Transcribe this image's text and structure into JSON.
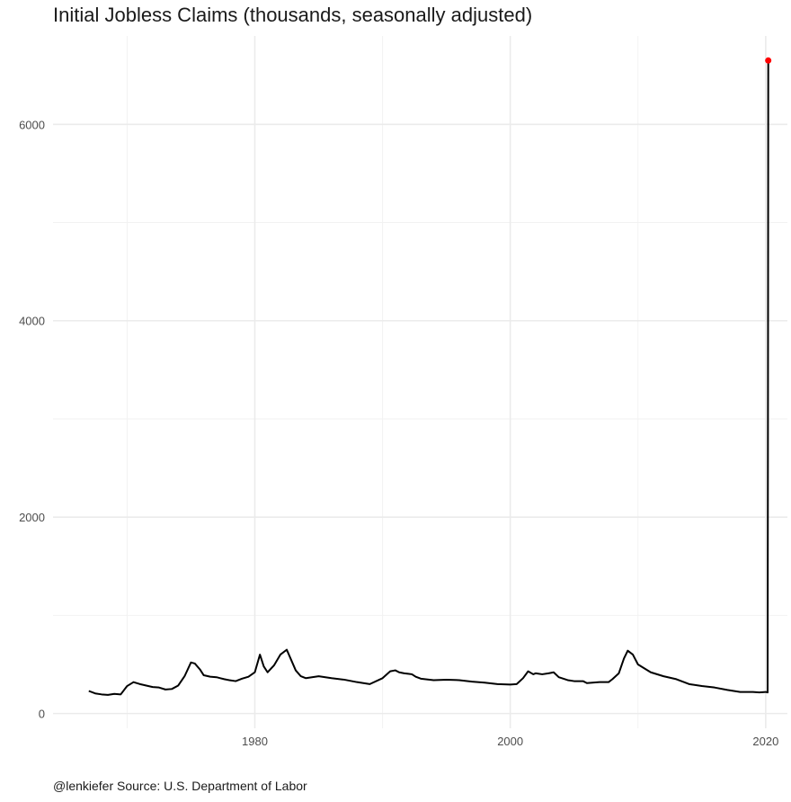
{
  "title": "Initial Jobless Claims (thousands, seasonally adjusted)",
  "caption": "@lenkiefer Source: U.S. Department of Labor",
  "chart_data": {
    "type": "line",
    "title": "Initial Jobless Claims (thousands, seasonally adjusted)",
    "xlabel": "",
    "ylabel": "",
    "xlim": [
      1964.2,
      2021.7
    ],
    "ylim": [
      -150,
      6900
    ],
    "x_major_ticks": [
      1980,
      2000,
      2020
    ],
    "x_minor_ticks": [
      1970,
      1990,
      2010
    ],
    "y_major_ticks": [
      0,
      2000,
      4000,
      6000
    ],
    "y_minor_ticks": [
      1000,
      3000,
      5000
    ],
    "tick_labels_x": [
      "1980",
      "2000",
      "2020"
    ],
    "tick_labels_y": [
      "0",
      "2000",
      "4000",
      "6000"
    ],
    "grid": true,
    "line_color": "#000000",
    "highlight_color": "#ff0000",
    "series": [
      {
        "x": [
          1967.0,
          1967.5,
          1968.0,
          1968.5,
          1969.0,
          1969.5,
          1970.0,
          1970.5,
          1971.0,
          1971.5,
          1972.0,
          1972.5,
          1973.0,
          1973.5,
          1974.0,
          1974.5,
          1975.0,
          1975.3,
          1975.7,
          1976.0,
          1976.5,
          1977.0,
          1977.3,
          1977.6,
          1978.0,
          1978.5,
          1979.0,
          1979.5,
          1980.0,
          1980.4,
          1980.7,
          1981.0,
          1981.5,
          1982.0,
          1982.5,
          1982.8,
          1983.2,
          1983.6,
          1984.0,
          1985.0,
          1986.0,
          1987.0,
          1988.0,
          1989.0,
          1990.0,
          1990.6,
          1991.0,
          1991.3,
          1991.7,
          1992.0,
          1992.3,
          1992.6,
          1993.0,
          1994.0,
          1995.0,
          1996.0,
          1997.0,
          1998.0,
          1999.0,
          2000.0,
          2000.5,
          2001.0,
          2001.4,
          2001.8,
          2002.0,
          2002.5,
          2003.0,
          2003.4,
          2003.8,
          2004.5,
          2005.0,
          2005.7,
          2006.0,
          2007.0,
          2007.7,
          2008.0,
          2008.5,
          2008.9,
          2009.2,
          2009.6,
          2010.0,
          2010.5,
          2011.0,
          2012.0,
          2013.0,
          2014.0,
          2015.0,
          2016.0,
          2017.0,
          2018.0,
          2019.0,
          2019.5,
          2020.0,
          2020.15,
          2020.18,
          2020.2
        ],
        "y": [
          230,
          205,
          195,
          190,
          200,
          195,
          280,
          320,
          300,
          285,
          270,
          265,
          245,
          250,
          285,
          380,
          520,
          510,
          450,
          390,
          375,
          370,
          360,
          350,
          340,
          330,
          355,
          375,
          420,
          600,
          480,
          420,
          490,
          600,
          650,
          560,
          440,
          380,
          360,
          380,
          360,
          345,
          320,
          300,
          360,
          430,
          440,
          420,
          410,
          405,
          400,
          375,
          355,
          340,
          345,
          340,
          325,
          315,
          300,
          295,
          300,
          360,
          430,
          400,
          410,
          400,
          410,
          420,
          370,
          340,
          330,
          330,
          310,
          320,
          320,
          350,
          410,
          560,
          640,
          600,
          500,
          460,
          420,
          380,
          350,
          300,
          280,
          265,
          240,
          220,
          220,
          215,
          220,
          215,
          3300,
          6650
        ]
      }
    ],
    "highlight_point": {
      "x": 2020.2,
      "y": 6650
    }
  }
}
